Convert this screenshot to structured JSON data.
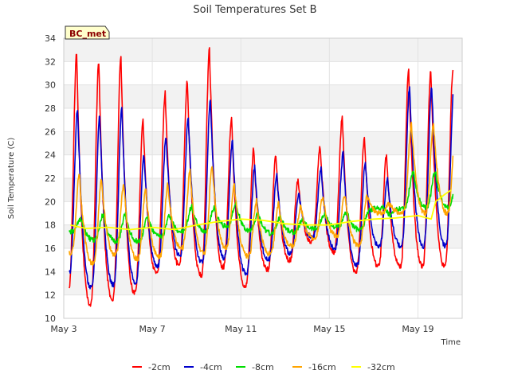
{
  "chart_data": {
    "type": "line",
    "title": "Soil Temperatures Set B",
    "xlabel": "Time",
    "ylabel": "Soil Temperature (C)",
    "station_label": "BC_met",
    "x_ticks": [
      {
        "day": 3,
        "label": "May 3"
      },
      {
        "day": 7,
        "label": "May 7"
      },
      {
        "day": 11,
        "label": "May 11"
      },
      {
        "day": 15,
        "label": "May 15"
      },
      {
        "day": 19,
        "label": "May 19"
      }
    ],
    "xlim": [
      3,
      21
    ],
    "ylim": [
      10,
      34
    ],
    "y_ticks": [
      10,
      12,
      14,
      16,
      18,
      20,
      22,
      24,
      26,
      28,
      30,
      32,
      34
    ],
    "grid": true,
    "legend_position": "bottom",
    "series": [
      {
        "name": "-2cm",
        "color": "#ff0000",
        "kind": "diurnal",
        "peak_hour": 14,
        "min_hour": 5,
        "min": [
          12.3,
          11.2,
          11.6,
          12.2,
          13.9,
          14.6,
          13.7,
          14.4,
          12.8,
          14.2,
          15.0,
          16.6,
          15.7,
          14.0,
          14.5
        ],
        "max": [
          32.7,
          32.0,
          32.4,
          27.0,
          29.3,
          30.3,
          33.1,
          27.2,
          24.5,
          23.9,
          21.8,
          24.7,
          27.2,
          25.4,
          24.0,
          31.2
        ]
      },
      {
        "name": "-4cm",
        "color": "#0000cc",
        "kind": "diurnal",
        "peak_hour": 15,
        "min_hour": 6,
        "min": [
          13.9,
          12.6,
          12.9,
          13.1,
          14.5,
          15.4,
          14.8,
          15.2,
          13.8,
          15.0,
          15.6,
          16.9,
          16.0,
          14.6,
          16.2
        ],
        "max": [
          28.0,
          27.4,
          28.0,
          24.0,
          25.6,
          27.2,
          28.6,
          25.2,
          23.0,
          22.2,
          20.6,
          22.8,
          24.1,
          23.3,
          22.0,
          29.8
        ]
      },
      {
        "name": "-8cm",
        "color": "#00dd00",
        "kind": "diurnal",
        "peak_hour": 19,
        "min_hour": 9,
        "min": [
          17.4,
          16.7,
          16.6,
          16.6,
          17.0,
          17.4,
          17.5,
          17.9,
          17.5,
          17.3,
          17.4,
          17.7,
          17.8,
          17.6,
          19.5
        ],
        "max": [
          18.6,
          18.9,
          18.9,
          18.7,
          18.8,
          19.6,
          19.5,
          19.9,
          19.0,
          18.7,
          18.4,
          18.9,
          19.1,
          19.2,
          18.8,
          22.6
        ]
      },
      {
        "name": "-16cm",
        "color": "#ffa500",
        "kind": "diurnal",
        "peak_hour": 17,
        "min_hour": 8,
        "min": [
          15.6,
          14.7,
          15.4,
          15.1,
          15.3,
          16.0,
          15.6,
          16.1,
          15.3,
          15.5,
          16.2,
          16.9,
          17.1,
          16.2,
          19.0
        ],
        "max": [
          22.3,
          21.8,
          21.4,
          21.0,
          21.5,
          22.6,
          23.0,
          21.5,
          20.1,
          19.8,
          19.6,
          20.4,
          20.6,
          20.5,
          19.8,
          26.6
        ]
      },
      {
        "name": "-32cm",
        "color": "#ffff00",
        "kind": "smooth",
        "points": [
          [
            3.3,
            18.0
          ],
          [
            4.0,
            17.7
          ],
          [
            5.0,
            17.8
          ],
          [
            6.0,
            17.6
          ],
          [
            7.0,
            17.8
          ],
          [
            8.0,
            17.6
          ],
          [
            9.0,
            18.0
          ],
          [
            10.0,
            18.3
          ],
          [
            11.0,
            18.5
          ],
          [
            12.0,
            18.4
          ],
          [
            13.0,
            18.1
          ],
          [
            14.0,
            18.0
          ],
          [
            15.0,
            18.0
          ],
          [
            16.0,
            18.3
          ],
          [
            17.0,
            18.5
          ],
          [
            18.0,
            18.6
          ],
          [
            19.0,
            18.8
          ],
          [
            19.6,
            18.5
          ],
          [
            19.8,
            20.0
          ],
          [
            20.2,
            20.6
          ],
          [
            20.5,
            21.0
          ]
        ]
      }
    ]
  }
}
